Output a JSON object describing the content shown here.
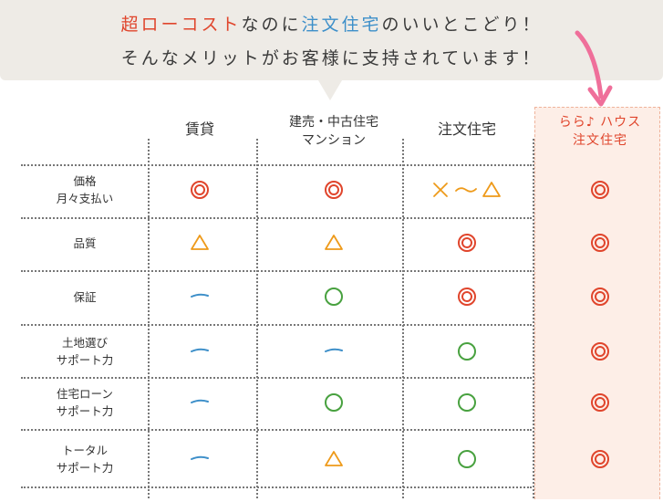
{
  "bubble": {
    "line1": [
      {
        "text": "超ローコスト",
        "style": "red"
      },
      {
        "text": "なのに",
        "style": "plain"
      },
      {
        "text": "注文住宅",
        "style": "blue"
      },
      {
        "text": "のいいとこどり！",
        "style": "plain"
      }
    ],
    "line2": "そんなメリットがお客様に支持されています！"
  },
  "columns": [
    {
      "label": "賃貸"
    },
    {
      "label": "建売・中古住宅\nマンション"
    },
    {
      "label": "注文住宅"
    },
    {
      "label": "らら♪ ハウス\n注文住宅"
    }
  ],
  "rows": [
    {
      "label": "価格\n月々支払い",
      "marks": [
        "double-circle",
        "double-circle",
        "cross-tilde-triangle",
        "double-circle"
      ]
    },
    {
      "label": "品質",
      "marks": [
        "triangle",
        "triangle",
        "double-circle",
        "double-circle"
      ]
    },
    {
      "label": "保証",
      "marks": [
        "dash",
        "circle",
        "double-circle",
        "double-circle"
      ]
    },
    {
      "label": "土地選び\nサポート力",
      "marks": [
        "dash",
        "dash",
        "circle",
        "double-circle"
      ]
    },
    {
      "label": "住宅ローン\nサポート力",
      "marks": [
        "dash",
        "circle",
        "circle",
        "double-circle"
      ]
    },
    {
      "label": "トータル\nサポート力",
      "marks": [
        "dash",
        "triangle",
        "circle",
        "double-circle"
      ]
    }
  ],
  "colors": {
    "double_circle": "#e0452c",
    "circle": "#48a13f",
    "triangle": "#ee9a1a",
    "dash": "#3d8fc9",
    "highlight_text": "#e0452c",
    "highlight_bg": "#fdeee7",
    "arrow": "#ef6f9a"
  }
}
